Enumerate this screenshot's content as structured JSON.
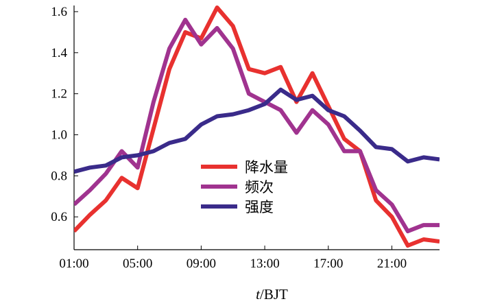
{
  "chart_data": {
    "type": "line",
    "title": "",
    "xlabel_italic": "t",
    "xlabel_rest": "/BJT",
    "ylabel": "",
    "x": [
      1,
      2,
      3,
      4,
      5,
      6,
      7,
      8,
      9,
      10,
      11,
      12,
      13,
      14,
      15,
      16,
      17,
      18,
      19,
      20,
      21,
      22,
      23,
      24
    ],
    "xlim": [
      1,
      24
    ],
    "ylim": [
      0.44,
      1.63
    ],
    "xticks": [
      {
        "value": 1,
        "label": "01:00"
      },
      {
        "value": 5,
        "label": "05:00"
      },
      {
        "value": 9,
        "label": "09:00"
      },
      {
        "value": 13,
        "label": "13:00"
      },
      {
        "value": 17,
        "label": "17:00"
      },
      {
        "value": 21,
        "label": "21:00"
      }
    ],
    "yticks": [
      {
        "value": 0.6,
        "label": "0.6"
      },
      {
        "value": 0.8,
        "label": "0.8"
      },
      {
        "value": 1.0,
        "label": "1.0"
      },
      {
        "value": 1.2,
        "label": "1.2"
      },
      {
        "value": 1.4,
        "label": "1.4"
      },
      {
        "value": 1.6,
        "label": "1.6"
      }
    ],
    "grid": false,
    "legend_position": "center",
    "series": [
      {
        "name": "降水量",
        "color": "#e8312f",
        "values": [
          0.53,
          0.61,
          0.68,
          0.79,
          0.74,
          1.03,
          1.32,
          1.5,
          1.47,
          1.62,
          1.53,
          1.32,
          1.3,
          1.33,
          1.16,
          1.3,
          1.14,
          0.98,
          0.92,
          0.68,
          0.6,
          0.46,
          0.49,
          0.48
        ]
      },
      {
        "name": "频次",
        "color": "#a0338f",
        "values": [
          0.66,
          0.73,
          0.81,
          0.92,
          0.84,
          1.16,
          1.42,
          1.56,
          1.44,
          1.52,
          1.42,
          1.2,
          1.16,
          1.12,
          1.01,
          1.12,
          1.05,
          0.92,
          0.92,
          0.73,
          0.66,
          0.53,
          0.56,
          0.56
        ]
      },
      {
        "name": "强度",
        "color": "#3a2b8a",
        "values": [
          0.82,
          0.84,
          0.85,
          0.89,
          0.9,
          0.92,
          0.96,
          0.98,
          1.05,
          1.09,
          1.1,
          1.12,
          1.15,
          1.22,
          1.17,
          1.19,
          1.12,
          1.09,
          1.02,
          0.94,
          0.93,
          0.87,
          0.89,
          0.88
        ]
      }
    ]
  }
}
